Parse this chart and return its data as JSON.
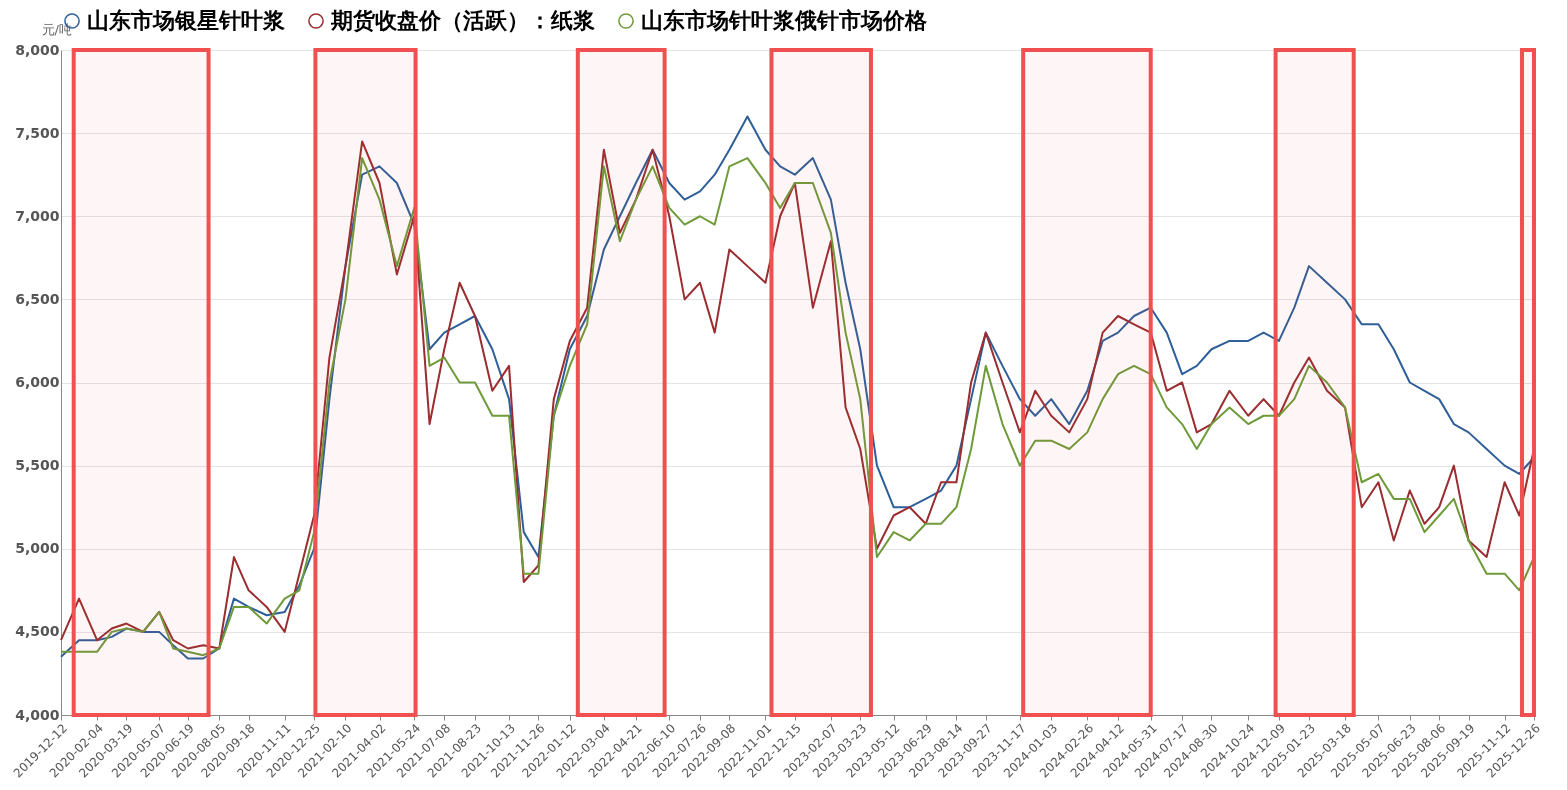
{
  "chart_data": {
    "type": "line",
    "ylabel": "元/吨",
    "x": [
      "2019-12-12",
      "2020-01-08",
      "2020-02-04",
      "2020-02-26",
      "2020-03-19",
      "2020-04-13",
      "2020-05-07",
      "2020-05-28",
      "2020-06-19",
      "2020-07-12",
      "2020-08-05",
      "2020-08-27",
      "2020-09-18",
      "2020-10-15",
      "2020-11-11",
      "2020-12-03",
      "2020-12-25",
      "2021-01-17",
      "2021-02-10",
      "2021-03-07",
      "2021-04-02",
      "2021-04-28",
      "2021-05-24",
      "2021-06-16",
      "2021-07-08",
      "2021-07-31",
      "2021-08-23",
      "2021-09-18",
      "2021-10-13",
      "2021-11-04",
      "2021-11-26",
      "2021-12-19",
      "2022-01-12",
      "2022-02-07",
      "2022-03-04",
      "2022-03-28",
      "2022-04-21",
      "2022-05-16",
      "2022-06-10",
      "2022-07-03",
      "2022-07-26",
      "2022-08-17",
      "2022-09-08",
      "2022-10-05",
      "2022-11-01",
      "2022-11-23",
      "2022-12-15",
      "2023-01-11",
      "2023-02-07",
      "2023-03-01",
      "2023-03-23",
      "2023-04-17",
      "2023-05-12",
      "2023-06-05",
      "2023-06-29",
      "2023-07-22",
      "2023-08-14",
      "2023-09-05",
      "2023-09-27",
      "2023-10-22",
      "2023-11-17",
      "2023-12-10",
      "2024-01-03",
      "2024-01-30",
      "2024-02-26",
      "2024-03-20",
      "2024-04-12",
      "2024-05-06",
      "2024-05-31",
      "2024-06-24",
      "2024-07-17",
      "2024-08-08",
      "2024-08-30",
      "2024-09-26",
      "2024-10-24",
      "2024-11-16",
      "2024-12-09",
      "2025-01-01",
      "2025-01-23",
      "2025-02-19",
      "2025-03-18",
      "2025-04-12",
      "2025-05-07",
      "2025-05-30",
      "2025-06-23",
      "2025-07-15",
      "2025-08-06",
      "2025-08-28",
      "2025-09-19",
      "2025-10-16",
      "2025-11-12",
      "2025-12-04",
      "2025-12-26"
    ],
    "series": [
      {
        "name": "山东市场银星针叶浆",
        "color": "#2f5f98",
        "values": [
          4350,
          4450,
          4450,
          4470,
          4520,
          4500,
          4500,
          4420,
          4340,
          4340,
          4400,
          4700,
          4650,
          4600,
          4620,
          4780,
          5000,
          5900,
          6700,
          7250,
          7300,
          7200,
          6950,
          6200,
          6300,
          6350,
          6400,
          6200,
          5900,
          5100,
          4950,
          5800,
          6200,
          6400,
          6800,
          7000,
          7200,
          7400,
          7200,
          7100,
          7150,
          7250,
          7400,
          7600,
          7400,
          7300,
          7250,
          7350,
          7100,
          6600,
          6200,
          5500,
          5250,
          5250,
          5300,
          5350,
          5500,
          5900,
          6300,
          6100,
          5900,
          5800,
          5900,
          5750,
          5950,
          6250,
          6300,
          6400,
          6450,
          6300,
          6050,
          6100,
          6200,
          6250,
          6250,
          6300,
          6250,
          6450,
          6700,
          6600,
          6500,
          6350,
          6350,
          6200,
          6000,
          5950,
          5900,
          5750,
          5700,
          5600,
          5500,
          5450,
          5550
        ]
      },
      {
        "name": "期货收盘价（活跃）：纸浆",
        "color": "#9a2d2f",
        "values": [
          4450,
          4700,
          4450,
          4520,
          4550,
          4500,
          4620,
          4450,
          4400,
          4420,
          4400,
          4950,
          4750,
          4650,
          4500,
          4850,
          5200,
          6150,
          6700,
          7450,
          7200,
          6650,
          7000,
          5750,
          6200,
          6600,
          6400,
          5950,
          6100,
          4800,
          4900,
          5900,
          6250,
          6450,
          7400,
          6900,
          7100,
          7400,
          7000,
          6500,
          6600,
          6300,
          6800,
          6700,
          6600,
          7000,
          7200,
          6450,
          6850,
          5850,
          5600,
          5000,
          5200,
          5250,
          5150,
          5400,
          5400,
          6000,
          6300,
          6000,
          5700,
          5950,
          5800,
          5700,
          5900,
          6300,
          6400,
          6350,
          6300,
          5950,
          6000,
          5700,
          5750,
          5950,
          5800,
          5900,
          5800,
          6000,
          6150,
          5950,
          5850,
          5250,
          5400,
          5050,
          5350,
          5150,
          5250,
          5500,
          5050,
          4950,
          5400,
          5200,
          5600
        ]
      },
      {
        "name": "山东市场针叶浆俄针市场价格",
        "color": "#6f9a3a",
        "values": [
          4380,
          4380,
          4380,
          4500,
          4520,
          4500,
          4620,
          4400,
          4380,
          4360,
          4400,
          4650,
          4650,
          4550,
          4700,
          4750,
          5100,
          6000,
          6500,
          7350,
          7100,
          6700,
          7050,
          6100,
          6150,
          6000,
          6000,
          5800,
          5800,
          4850,
          4850,
          5800,
          6100,
          6350,
          7300,
          6850,
          7100,
          7300,
          7050,
          6950,
          7000,
          6950,
          7300,
          7350,
          7200,
          7050,
          7200,
          7200,
          6900,
          6300,
          5900,
          4950,
          5100,
          5050,
          5150,
          5150,
          5250,
          5600,
          6100,
          5750,
          5500,
          5650,
          5650,
          5600,
          5700,
          5900,
          6050,
          6100,
          6050,
          5850,
          5750,
          5600,
          5750,
          5850,
          5750,
          5800,
          5800,
          5900,
          6100,
          6000,
          5850,
          5400,
          5450,
          5300,
          5300,
          5100,
          5200,
          5300,
          5050,
          4850,
          4850,
          4750,
          4950
        ]
      }
    ],
    "xlim": [
      "2019-12-12",
      "2025-12-26"
    ],
    "xticks": [
      "2019-12-12",
      "2020-02-04",
      "2020-03-19",
      "2020-05-07",
      "2020-06-19",
      "2020-08-05",
      "2020-09-18",
      "2020-11-11",
      "2020-12-25",
      "2021-02-10",
      "2021-04-02",
      "2021-05-24",
      "2021-07-08",
      "2021-08-23",
      "2021-10-13",
      "2021-11-26",
      "2022-01-12",
      "2022-03-04",
      "2022-04-21",
      "2022-06-10",
      "2022-07-26",
      "2022-09-08",
      "2022-11-01",
      "2022-12-15",
      "2023-02-07",
      "2023-03-23",
      "2023-05-12",
      "2023-06-29",
      "2023-08-14",
      "2023-09-27",
      "2023-11-17",
      "2024-01-03",
      "2024-02-26",
      "2024-04-12",
      "2024-05-31",
      "2024-07-17",
      "2024-08-30",
      "2024-10-24",
      "2024-12-09",
      "2025-01-23",
      "2025-03-18",
      "2025-05-07",
      "2025-06-23",
      "2025-08-06",
      "2025-09-19",
      "2025-11-12",
      "2025-12-26"
    ],
    "ylim": [
      4000,
      8000
    ],
    "yticks": [
      {
        "value": 4000,
        "label": "4,000"
      },
      {
        "value": 4500,
        "label": "4,500"
      },
      {
        "value": 5000,
        "label": "5,000"
      },
      {
        "value": 5500,
        "label": "5,500"
      },
      {
        "value": 6000,
        "label": "6,000"
      },
      {
        "value": 6500,
        "label": "6,500"
      },
      {
        "value": 7000,
        "label": "7,000"
      },
      {
        "value": 7500,
        "label": "7,500"
      },
      {
        "value": 8000,
        "label": "8,000"
      }
    ],
    "bands": [
      {
        "axis": "x",
        "from": "2019-12-31",
        "to": "2020-07-20",
        "color": "#f05050"
      },
      {
        "axis": "x",
        "from": "2020-12-27",
        "to": "2021-05-26",
        "color": "#f05050"
      },
      {
        "axis": "x",
        "from": "2022-01-24",
        "to": "2022-06-03",
        "color": "#f05050"
      },
      {
        "axis": "x",
        "from": "2022-11-10",
        "to": "2023-04-08",
        "color": "#f05050"
      },
      {
        "axis": "x",
        "from": "2023-11-22",
        "to": "2024-05-31",
        "color": "#f05050"
      },
      {
        "axis": "x",
        "from": "2024-12-04",
        "to": "2025-03-31",
        "color": "#f05050"
      },
      {
        "axis": "x",
        "from": "2025-12-08",
        "to": "2025-12-26",
        "color": "#f05050"
      }
    ],
    "grid": "y",
    "legend": "top",
    "line_style": "solid"
  }
}
